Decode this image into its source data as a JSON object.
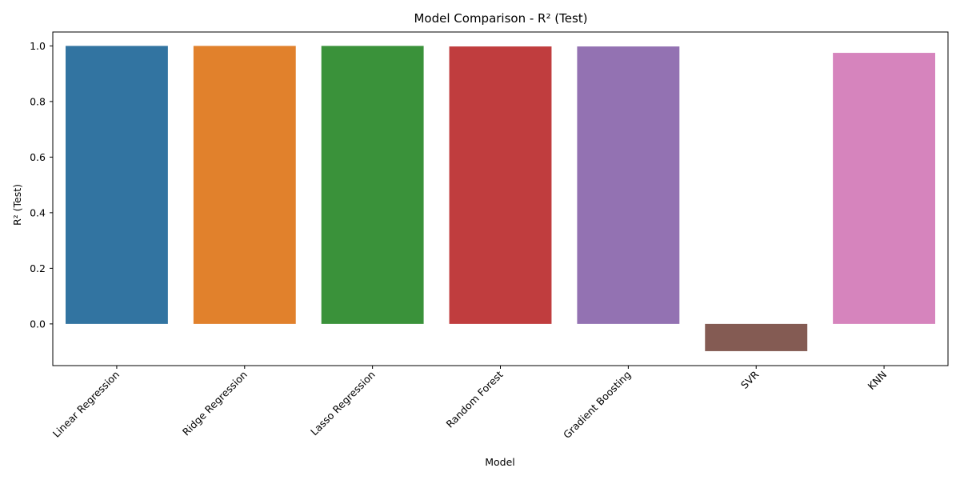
{
  "chart_data": {
    "type": "bar",
    "title": "Model Comparison - R² (Test)",
    "xlabel": "Model",
    "ylabel": "R² (Test)",
    "categories": [
      "Linear Regression",
      "Ridge Regression",
      "Lasso Regression",
      "Random Forest",
      "Gradient Boosting",
      "SVR",
      "KNN"
    ],
    "values": [
      1.0,
      1.0,
      1.0,
      0.998,
      0.998,
      -0.098,
      0.975
    ],
    "colors": [
      "#3274a1",
      "#e1812c",
      "#3a923a",
      "#c03d3e",
      "#9372b2",
      "#845b53",
      "#d684bd"
    ],
    "ylim": [
      -0.15,
      1.05
    ],
    "yticks": [
      0.0,
      0.2,
      0.4,
      0.6,
      0.8,
      1.0
    ],
    "ytick_labels": [
      "0.0",
      "0.2",
      "0.4",
      "0.6",
      "0.8",
      "1.0"
    ],
    "xtick_rotation": 45,
    "grid": false,
    "legend": "none"
  }
}
